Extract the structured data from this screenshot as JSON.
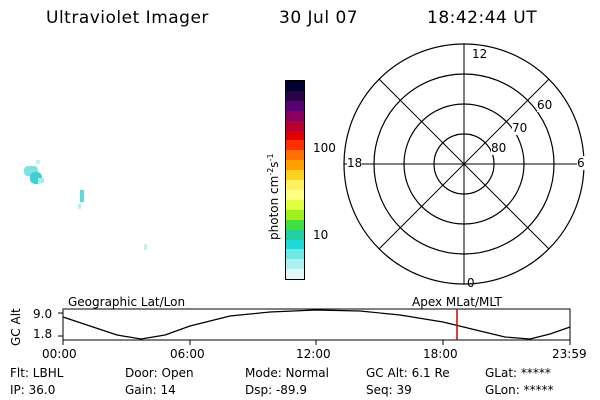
{
  "header": {
    "instrument": "Ultraviolet Imager",
    "date": "30 Jul 07",
    "time": "18:42:44 UT"
  },
  "colorbar": {
    "unit": "photon cm",
    "tick_100": "100",
    "tick_10": "10",
    "colors": [
      "#000033",
      "#2a004a",
      "#5a0070",
      "#8a0060",
      "#b80030",
      "#e00000",
      "#ff3000",
      "#ff7000",
      "#ffa000",
      "#ffd020",
      "#fff060",
      "#ffff80",
      "#e0ff40",
      "#a0f020",
      "#40e040",
      "#20d0a0",
      "#20d8d8",
      "#70e8e8",
      "#b0f0f0",
      "#e4f6f6"
    ]
  },
  "polar": {
    "noon": "12",
    "midnight": "0",
    "dusk": "18",
    "dawn": "6",
    "lat60": "60",
    "lat70": "70",
    "lat80": "80"
  },
  "strip": {
    "axis_title": "GC Alt",
    "ytick_high": "9.0",
    "ytick_low": "1.8",
    "left_title": "Geographic Lat/Lon",
    "right_title": "Apex MLat/MLT",
    "xticks": [
      "00:00",
      "06:00",
      "12:00",
      "18:00",
      "23:59"
    ],
    "marker_color": "#cc0000"
  },
  "info": {
    "flt": "Flt: LBHL",
    "ip": "IP: 36.0",
    "door": "Door: Open",
    "gain": "Gain: 14",
    "mode": "Mode: Normal",
    "dsp": "Dsp:  -89.9",
    "gcalt": "GC Alt: 6.1 Re",
    "seq": "Seq: 39",
    "glat": "GLat: *****",
    "glon": "GLon: *****"
  }
}
